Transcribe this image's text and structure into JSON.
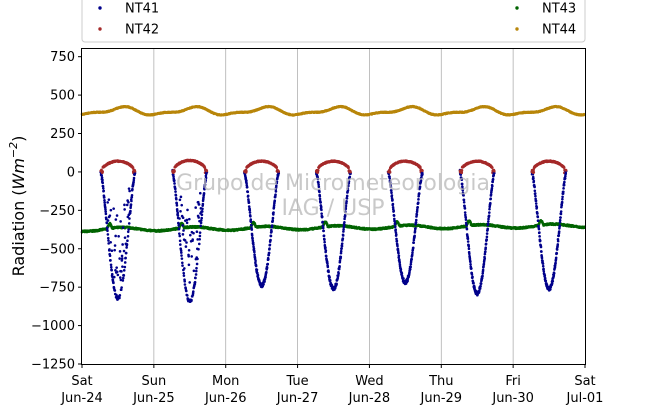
{
  "chart_data": {
    "type": "scatter",
    "ylabel_main": "Radiation (",
    "ylabel_unit": "Wm",
    "ylabel_exp": "−2",
    "ylabel_close": ")",
    "ylim": [
      -1250,
      800
    ],
    "yticks": [
      750,
      500,
      250,
      0,
      -250,
      -500,
      -750,
      -1000,
      -1250
    ],
    "ytick_labels": [
      "750",
      "500",
      "250",
      "0",
      "−250",
      "−500",
      "−750",
      "−1000",
      "−1250"
    ],
    "xlim_days": [
      0,
      7
    ],
    "grid": "vertical",
    "legend_placement": "top",
    "xticks": [
      {
        "day": 0,
        "weekday": "Sat",
        "date": "Jun-24"
      },
      {
        "day": 1,
        "weekday": "Sun",
        "date": "Jun-25"
      },
      {
        "day": 2,
        "weekday": "Mon",
        "date": "Jun-26"
      },
      {
        "day": 3,
        "weekday": "Tue",
        "date": "Jun-27"
      },
      {
        "day": 4,
        "weekday": "Wed",
        "date": "Jun-28"
      },
      {
        "day": 5,
        "weekday": "Thu",
        "date": "Jun-29"
      },
      {
        "day": 6,
        "weekday": "Fri",
        "date": "Jun-30"
      },
      {
        "day": 7,
        "weekday": "Sat",
        "date": "Jul-01"
      }
    ],
    "watermark": [
      "Grupo de Micrometeorologia",
      "IAG / USP"
    ],
    "series": [
      {
        "name": "NT41",
        "color": "#00008b",
        "night": 0,
        "day_min": [
          -820,
          -840,
          -740,
          -760,
          -720,
          -790,
          -760
        ]
      },
      {
        "name": "NT42",
        "color": "#a52a2a",
        "night": 0,
        "day_max": [
          70,
          75,
          70,
          70,
          70,
          70,
          70
        ]
      },
      {
        "name": "NT43",
        "color": "#006400",
        "range": [
          -395,
          -310
        ]
      },
      {
        "name": "NT44",
        "color": "#b8860b",
        "range": [
          350,
          440
        ]
      }
    ]
  }
}
